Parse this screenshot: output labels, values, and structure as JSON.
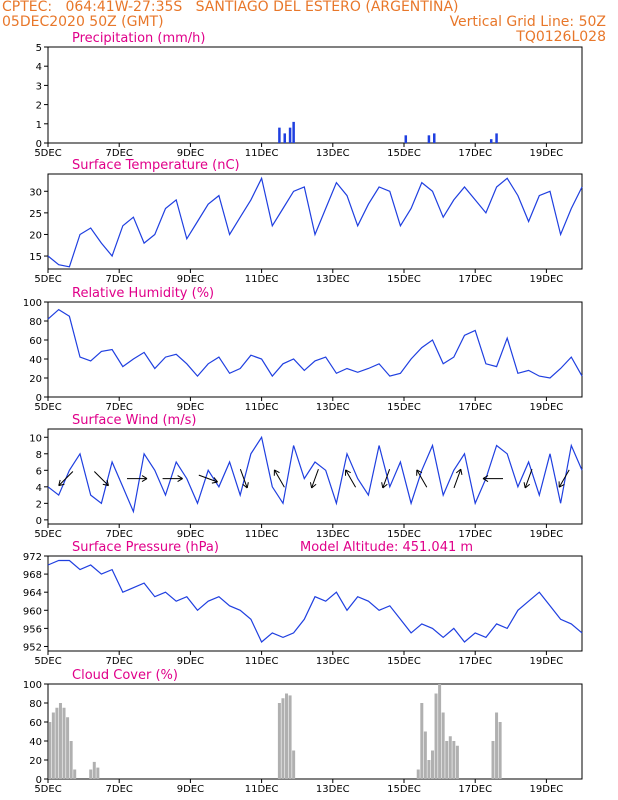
{
  "header": {
    "line1_left": "CPTEC:   064:41W-27:35S   SANTIAGO DEL ESTERO (ARGENTINA)",
    "line2_left": "05DEC2020 50Z (GMT)",
    "line2_right": "Vertical Grid Line: 50Z",
    "line3_right": "TQ0126L028"
  },
  "colors": {
    "header_text": "#e8772a",
    "panel_title": "#e0008a",
    "line": "#1f3fe0",
    "bar": "#1f3fe0",
    "cloud": "#b0b0b0"
  },
  "x_axis": {
    "ticks": [
      "5DEC",
      "7DEC",
      "9DEC",
      "11DEC",
      "13DEC",
      "15DEC",
      "17DEC",
      "19DEC"
    ],
    "start_day": 5,
    "end_day": 20
  },
  "chart_data": [
    {
      "id": "precip",
      "type": "bar",
      "title": "Precipitation (mm/h)",
      "ylim": [
        0,
        5
      ],
      "yticks": [
        0,
        1,
        2,
        3,
        4,
        5
      ],
      "x": [
        11.5,
        11.65,
        11.8,
        11.9,
        15.05,
        15.7,
        15.85,
        17.45,
        17.6
      ],
      "values": [
        0.8,
        0.5,
        0.8,
        1.1,
        0.4,
        0.4,
        0.5,
        0.2,
        0.5
      ]
    },
    {
      "id": "temp",
      "type": "line",
      "title": "Surface Temperature (nC)",
      "ylim": [
        12,
        34
      ],
      "yticks": [
        15,
        20,
        25,
        30
      ],
      "x": [
        5.0,
        5.3,
        5.6,
        5.9,
        6.2,
        6.5,
        6.8,
        7.1,
        7.4,
        7.7,
        8.0,
        8.3,
        8.6,
        8.9,
        9.2,
        9.5,
        9.8,
        10.1,
        10.4,
        10.7,
        11.0,
        11.3,
        11.6,
        11.9,
        12.2,
        12.5,
        12.8,
        13.1,
        13.4,
        13.7,
        14.0,
        14.3,
        14.6,
        14.9,
        15.2,
        15.5,
        15.8,
        16.1,
        16.4,
        16.7,
        17.0,
        17.3,
        17.6,
        17.9,
        18.2,
        18.5,
        18.8,
        19.1,
        19.4,
        19.7,
        20.0
      ],
      "values": [
        15,
        13,
        12.5,
        20,
        21.5,
        18,
        15,
        22,
        24,
        18,
        20,
        26,
        28,
        19,
        23,
        27,
        29,
        20,
        24,
        28,
        33,
        22,
        26,
        30,
        31,
        20,
        26,
        32,
        29,
        22,
        27,
        31,
        30,
        22,
        26,
        32,
        30,
        24,
        28,
        31,
        28,
        25,
        31,
        33,
        29,
        23,
        29,
        30,
        20,
        26,
        31
      ]
    },
    {
      "id": "rh",
      "type": "line",
      "title": "Relative Humidity (%)",
      "ylim": [
        0,
        100
      ],
      "yticks": [
        0,
        20,
        40,
        60,
        80,
        100
      ],
      "x": [
        5.0,
        5.3,
        5.6,
        5.9,
        6.2,
        6.5,
        6.8,
        7.1,
        7.4,
        7.7,
        8.0,
        8.3,
        8.6,
        8.9,
        9.2,
        9.5,
        9.8,
        10.1,
        10.4,
        10.7,
        11.0,
        11.3,
        11.6,
        11.9,
        12.2,
        12.5,
        12.8,
        13.1,
        13.4,
        13.7,
        14.0,
        14.3,
        14.6,
        14.9,
        15.2,
        15.5,
        15.8,
        16.1,
        16.4,
        16.7,
        17.0,
        17.3,
        17.6,
        17.9,
        18.2,
        18.5,
        18.8,
        19.1,
        19.4,
        19.7,
        20.0
      ],
      "values": [
        82,
        92,
        85,
        42,
        38,
        48,
        50,
        32,
        40,
        47,
        30,
        42,
        45,
        35,
        22,
        35,
        42,
        25,
        30,
        44,
        40,
        22,
        35,
        40,
        28,
        38,
        42,
        25,
        30,
        26,
        30,
        35,
        22,
        25,
        40,
        52,
        60,
        35,
        42,
        65,
        70,
        35,
        32,
        62,
        25,
        28,
        22,
        20,
        30,
        42,
        22
      ]
    },
    {
      "id": "wind",
      "type": "line",
      "title": "Surface Wind (m/s)",
      "ylim": [
        -0.5,
        11
      ],
      "yticks": [
        0,
        2,
        4,
        6,
        8,
        10
      ],
      "x": [
        5.0,
        5.3,
        5.6,
        5.9,
        6.2,
        6.5,
        6.8,
        7.1,
        7.4,
        7.7,
        8.0,
        8.3,
        8.6,
        8.9,
        9.2,
        9.5,
        9.8,
        10.1,
        10.4,
        10.7,
        11.0,
        11.3,
        11.6,
        11.9,
        12.2,
        12.5,
        12.8,
        13.1,
        13.4,
        13.7,
        14.0,
        14.3,
        14.6,
        14.9,
        15.2,
        15.5,
        15.8,
        16.1,
        16.4,
        16.7,
        17.0,
        17.3,
        17.6,
        17.9,
        18.2,
        18.5,
        18.8,
        19.1,
        19.4,
        19.7,
        20.0
      ],
      "values": [
        4,
        3,
        6,
        8,
        3,
        2,
        7,
        4,
        1,
        8,
        6,
        3,
        7,
        5,
        2,
        6,
        4,
        7,
        3,
        8,
        10,
        4,
        2,
        9,
        5,
        7,
        6,
        2,
        8,
        5,
        3,
        9,
        4,
        7,
        2,
        6,
        9,
        3,
        6,
        8,
        2,
        5,
        9,
        8,
        4,
        7,
        3,
        8,
        2,
        9,
        6
      ],
      "arrows": [
        [
          5.5,
          225
        ],
        [
          6.5,
          135
        ],
        [
          7.5,
          90
        ],
        [
          8.5,
          90
        ],
        [
          9.5,
          110
        ],
        [
          10.5,
          160
        ],
        [
          11.5,
          330
        ],
        [
          12.5,
          200
        ],
        [
          13.5,
          330
        ],
        [
          14.5,
          200
        ],
        [
          15.5,
          330
        ],
        [
          16.5,
          20
        ],
        [
          17.5,
          270
        ],
        [
          18.5,
          200
        ],
        [
          19.5,
          210
        ]
      ]
    },
    {
      "id": "pres",
      "type": "line",
      "title": "Surface Pressure (hPa)",
      "annotation": "Model Altitude: 451.041 m",
      "ylim": [
        951,
        972
      ],
      "yticks": [
        952,
        956,
        960,
        964,
        968,
        972
      ],
      "x": [
        5.0,
        5.3,
        5.6,
        5.9,
        6.2,
        6.5,
        6.8,
        7.1,
        7.4,
        7.7,
        8.0,
        8.3,
        8.6,
        8.9,
        9.2,
        9.5,
        9.8,
        10.1,
        10.4,
        10.7,
        11.0,
        11.3,
        11.6,
        11.9,
        12.2,
        12.5,
        12.8,
        13.1,
        13.4,
        13.7,
        14.0,
        14.3,
        14.6,
        14.9,
        15.2,
        15.5,
        15.8,
        16.1,
        16.4,
        16.7,
        17.0,
        17.3,
        17.6,
        17.9,
        18.2,
        18.5,
        18.8,
        19.1,
        19.4,
        19.7,
        20.0
      ],
      "values": [
        970,
        971,
        971,
        969,
        970,
        968,
        969,
        964,
        965,
        966,
        963,
        964,
        962,
        963,
        960,
        962,
        963,
        961,
        960,
        958,
        953,
        955,
        954,
        955,
        958,
        963,
        962,
        964,
        960,
        963,
        962,
        960,
        961,
        958,
        955,
        957,
        956,
        954,
        956,
        953,
        955,
        954,
        957,
        956,
        960,
        962,
        964,
        961,
        958,
        957,
        955
      ]
    },
    {
      "id": "cloud",
      "type": "bar",
      "title": "Cloud Cover (%)",
      "ylim": [
        0,
        100
      ],
      "yticks": [
        0,
        20,
        40,
        60,
        80,
        100
      ],
      "x": [
        5.05,
        5.15,
        5.25,
        5.35,
        5.45,
        5.55,
        5.65,
        5.75,
        6.2,
        6.3,
        6.4,
        11.5,
        11.6,
        11.7,
        11.8,
        11.9,
        15.4,
        15.5,
        15.6,
        15.7,
        15.8,
        15.9,
        16.0,
        16.1,
        16.2,
        16.3,
        16.4,
        16.5,
        17.5,
        17.6,
        17.7
      ],
      "values": [
        60,
        70,
        75,
        80,
        75,
        65,
        40,
        10,
        10,
        18,
        12,
        80,
        85,
        90,
        88,
        30,
        10,
        80,
        50,
        20,
        30,
        90,
        100,
        70,
        40,
        45,
        40,
        35,
        40,
        70,
        60
      ]
    }
  ]
}
